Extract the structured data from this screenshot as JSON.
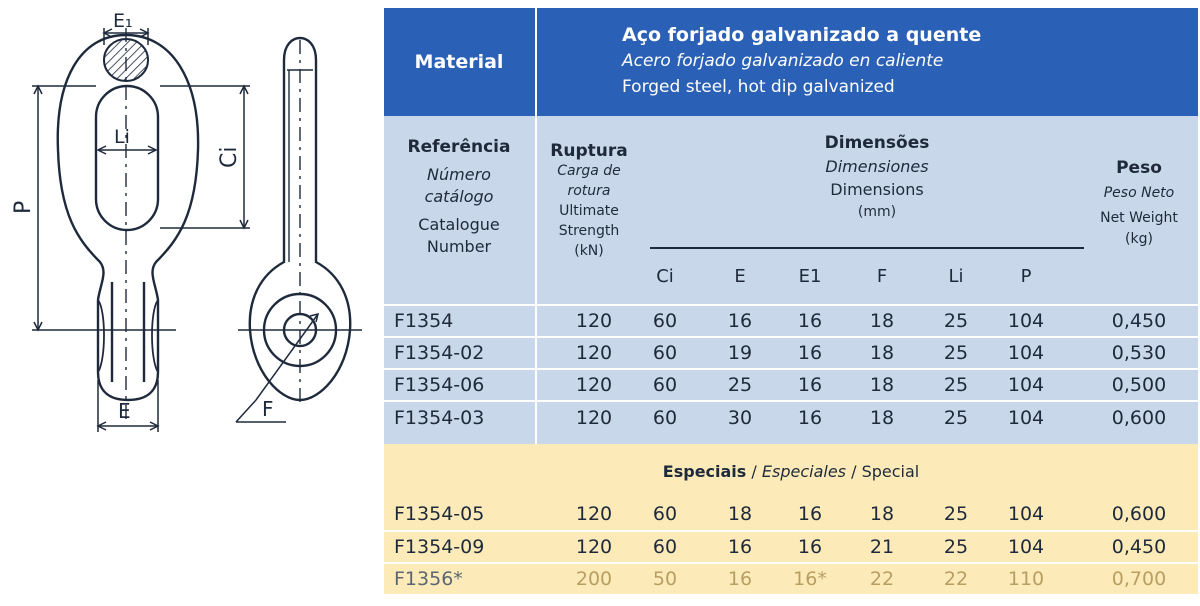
{
  "drawing": {
    "labels": {
      "e1": "E₁",
      "li": "Li",
      "ci": "Ci",
      "p": "P",
      "e": "E",
      "f": "F"
    }
  },
  "material": {
    "label": "Material",
    "pt": "Aço forjado galvanizado a quente",
    "es": "Acero forjado galvanizado en caliente",
    "en": "Forged steel, hot dip galvanized"
  },
  "headers": {
    "reference": {
      "pt": "Referência",
      "es_1": "Número",
      "es_2": "catálogo",
      "en_1": "Catalogue",
      "en_2": "Number"
    },
    "rupture": {
      "pt": "Ruptura",
      "es_1": "Carga de",
      "es_2": "rotura",
      "en_1": "Ultimate",
      "en_2": "Strength",
      "unit": "(kN)"
    },
    "dimensions": {
      "pt": "Dimensões",
      "es": "Dimensiones",
      "en": "Dimensions",
      "unit": "(mm)"
    },
    "weight": {
      "pt": "Peso",
      "es": "Peso Neto",
      "en": "Net Weight",
      "unit": "(kg)"
    },
    "dim_columns": [
      "Ci",
      "E",
      "E1",
      "F",
      "Li",
      "P"
    ]
  },
  "rows": [
    {
      "ref": "F1354",
      "rupture": "120",
      "ci": "60",
      "e": "16",
      "e1": "16",
      "f": "18",
      "li": "25",
      "p": "104",
      "weight": "0,450"
    },
    {
      "ref": "F1354-02",
      "rupture": "120",
      "ci": "60",
      "e": "19",
      "e1": "16",
      "f": "18",
      "li": "25",
      "p": "104",
      "weight": "0,530"
    },
    {
      "ref": "F1354-06",
      "rupture": "120",
      "ci": "60",
      "e": "25",
      "e1": "16",
      "f": "18",
      "li": "25",
      "p": "104",
      "weight": "0,500"
    },
    {
      "ref": "F1354-03",
      "rupture": "120",
      "ci": "60",
      "e": "30",
      "e1": "16",
      "f": "18",
      "li": "25",
      "p": "104",
      "weight": "0,600"
    }
  ],
  "special_heading": {
    "pt": "Especiais",
    "sep1": " / ",
    "es": "Especiales",
    "sep2": " / ",
    "en": "Special"
  },
  "special_rows": [
    {
      "ref": "F1354-05",
      "rupture": "120",
      "ci": "60",
      "e": "18",
      "e1": "16",
      "f": "18",
      "li": "25",
      "p": "104",
      "weight": "0,600"
    },
    {
      "ref": "F1354-09",
      "rupture": "120",
      "ci": "60",
      "e": "16",
      "e1": "16",
      "f": "21",
      "li": "25",
      "p": "104",
      "weight": "0,450"
    },
    {
      "ref": "F1356*",
      "rupture": "200",
      "ci": "50",
      "e": "16",
      "e1": "16*",
      "f": "22",
      "li": "22",
      "p": "110",
      "weight": "0,700"
    }
  ],
  "colors": {
    "header_blue": "#2a60b6",
    "light_blue": "#c9d7ea",
    "light_yellow": "#fcebb8",
    "text": "#1e2a3c",
    "faded_gold": "#b99e62"
  }
}
